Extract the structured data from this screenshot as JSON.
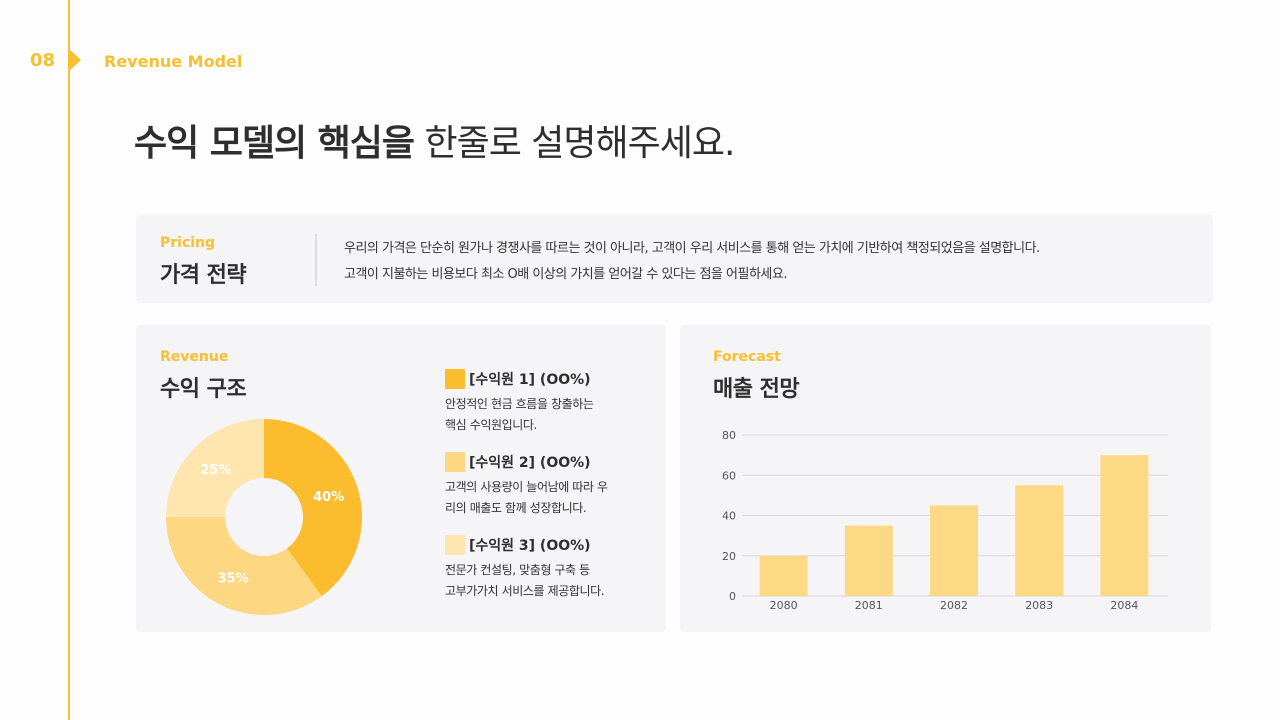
{
  "section": {
    "number": "08",
    "title": "Revenue Model"
  },
  "headline": {
    "bold": "수익 모델의 핵심을",
    "light": "한줄로 설명해주세요."
  },
  "pricing": {
    "tag": "Pricing",
    "title": "가격 전략",
    "lines": [
      "우리의 가격은 단순히 원가나 경쟁사를 따르는 것이 아니라, 고객이 우리 서비스를 통해 얻는 가치에 기반하여 책정되었음을 설명합니다.",
      "고객이 지불하는 비용보다 최소 O배 이상의 가치를 얻어갈 수 있다는 점을 어필하세요."
    ]
  },
  "revenue": {
    "tag": "Revenue",
    "title": "수익 구조",
    "items": [
      {
        "label": "[수익원 1] (OO%)",
        "desc1": "안정적인 현금 흐름을 창출하는",
        "desc2": "핵심 수익원입니다.",
        "color": "#fbbd2e"
      },
      {
        "label": "[수익원 2] (OO%)",
        "desc1": "고객의 사용량이 늘어남에 따라 우",
        "desc2": "리의 매출도 함께 성장합니다.",
        "color": "#fdd781"
      },
      {
        "label": "[수익원 3] (OO%)",
        "desc1": "전문가 컨설팅, 맞춤형 구축 등",
        "desc2": "고부가가치 서비스를 제공합니다.",
        "color": "#fee6ae"
      }
    ]
  },
  "chart_data": [
    {
      "type": "pie",
      "labels": [
        "40%",
        "35%",
        "25%"
      ],
      "values": [
        40,
        35,
        25
      ],
      "colors": [
        "#fbbd2e",
        "#fdd781",
        "#fee6ae"
      ],
      "donut": true
    },
    {
      "type": "bar",
      "categories": [
        "2080",
        "2081",
        "2082",
        "2083",
        "2084"
      ],
      "values": [
        20,
        35,
        45,
        55,
        70
      ],
      "ylim": [
        0,
        80
      ],
      "yticks": [
        0,
        20,
        40,
        60,
        80
      ],
      "grid": true,
      "color": "#fed985"
    }
  ],
  "forecast": {
    "tag": "Forecast",
    "title": "매출 전망"
  }
}
